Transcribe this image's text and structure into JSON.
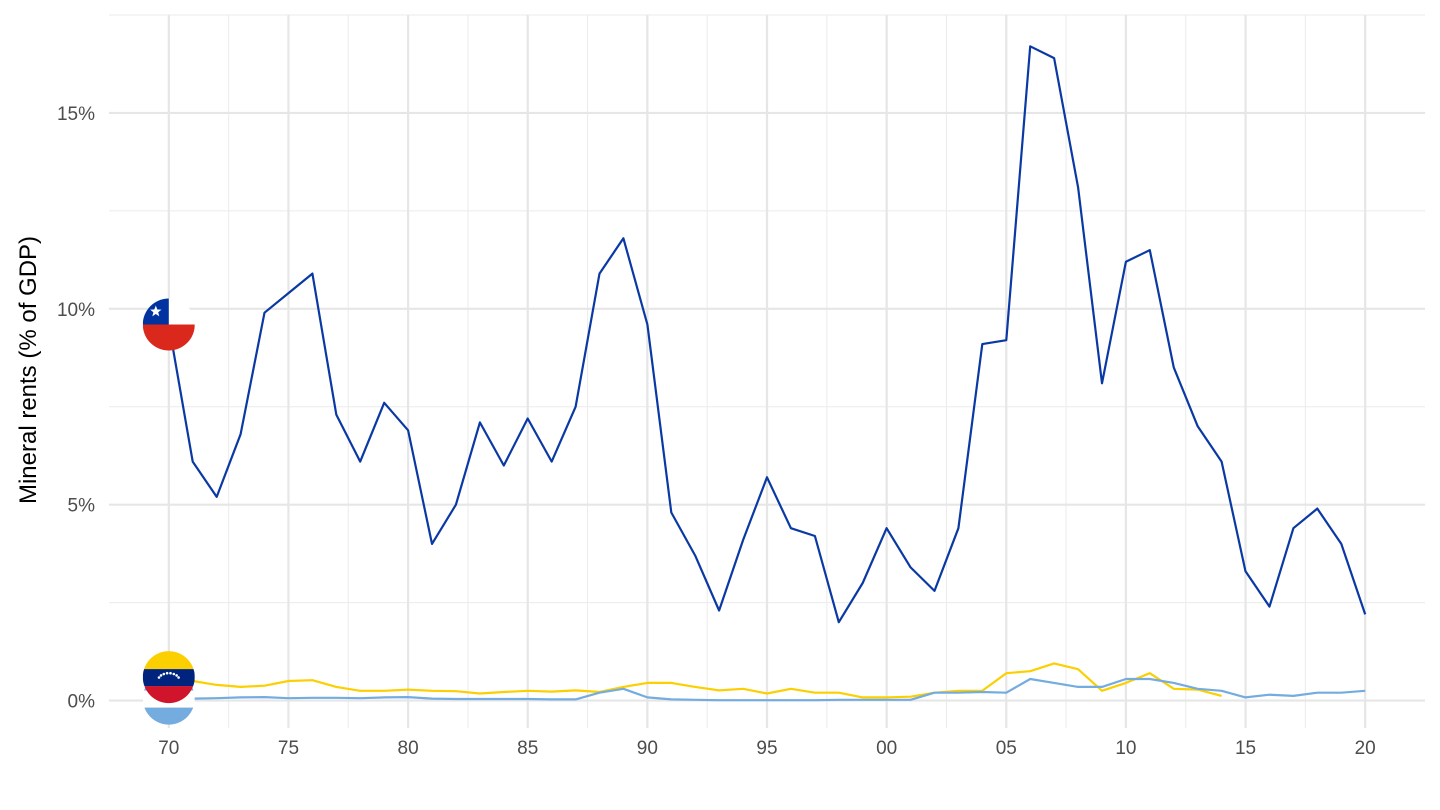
{
  "chart_data": {
    "type": "line",
    "title": "",
    "xlabel": "",
    "ylabel": "Mineral rents (% of GDP)",
    "xlim": [
      1967.5,
      2022.5
    ],
    "ylim": [
      -0.7,
      17.5
    ],
    "grid": true,
    "legend": "flag icons at series start (Chile, Venezuela, Argentina)",
    "x_ticks": [
      1970,
      1975,
      1980,
      1985,
      1990,
      1995,
      2000,
      2005,
      2010,
      2015,
      2020
    ],
    "x_tick_labels": [
      "70",
      "75",
      "80",
      "85",
      "90",
      "95",
      "00",
      "05",
      "10",
      "15",
      "20"
    ],
    "y_ticks": [
      0,
      5,
      10,
      15
    ],
    "y_tick_labels": [
      "0%",
      "5%",
      "10%",
      "15%"
    ],
    "series": [
      {
        "key": "chile",
        "color": "#0a39a4",
        "x": [
          1970,
          1971,
          1972,
          1973,
          1974,
          1975,
          1976,
          1977,
          1978,
          1979,
          1980,
          1981,
          1982,
          1983,
          1984,
          1985,
          1986,
          1987,
          1988,
          1989,
          1990,
          1991,
          1992,
          1993,
          1994,
          1995,
          1996,
          1997,
          1998,
          1999,
          2000,
          2001,
          2002,
          2003,
          2004,
          2005,
          2006,
          2007,
          2008,
          2009,
          2010,
          2011,
          2012,
          2013,
          2014,
          2015,
          2016,
          2017,
          2018,
          2019,
          2020
        ],
        "values": [
          9.6,
          6.1,
          5.2,
          6.8,
          9.9,
          10.4,
          10.9,
          7.3,
          6.1,
          7.6,
          6.9,
          4.0,
          5.0,
          7.1,
          6.0,
          7.2,
          6.1,
          7.5,
          10.9,
          11.8,
          9.6,
          4.8,
          3.7,
          2.3,
          4.1,
          5.7,
          4.4,
          4.2,
          2.0,
          3.0,
          4.4,
          3.4,
          2.8,
          4.4,
          9.1,
          9.2,
          16.7,
          16.4,
          13.1,
          8.1,
          11.2,
          11.5,
          8.5,
          7.0,
          6.1,
          3.3,
          2.4,
          4.4,
          4.9,
          4.0,
          2.2
        ]
      },
      {
        "key": "venezuela",
        "color": "#fccf00",
        "x": [
          1970,
          1971,
          1972,
          1973,
          1974,
          1975,
          1976,
          1977,
          1978,
          1979,
          1980,
          1981,
          1982,
          1983,
          1984,
          1985,
          1986,
          1987,
          1988,
          1989,
          1990,
          1991,
          1992,
          1993,
          1994,
          1995,
          1996,
          1997,
          1998,
          1999,
          2000,
          2001,
          2002,
          2003,
          2004,
          2005,
          2006,
          2007,
          2008,
          2009,
          2010,
          2011,
          2012,
          2013,
          2014
        ],
        "values": [
          0.6,
          0.5,
          0.4,
          0.35,
          0.38,
          0.5,
          0.52,
          0.35,
          0.25,
          0.25,
          0.28,
          0.25,
          0.24,
          0.18,
          0.22,
          0.25,
          0.23,
          0.26,
          0.22,
          0.35,
          0.45,
          0.45,
          0.35,
          0.26,
          0.3,
          0.18,
          0.3,
          0.2,
          0.2,
          0.08,
          0.08,
          0.1,
          0.2,
          0.25,
          0.25,
          0.7,
          0.75,
          0.95,
          0.8,
          0.25,
          0.45,
          0.7,
          0.3,
          0.28,
          0.12
        ]
      },
      {
        "key": "argentina",
        "color": "#74acdf",
        "x": [
          1970,
          1971,
          1972,
          1973,
          1974,
          1975,
          1976,
          1977,
          1978,
          1979,
          1980,
          1981,
          1982,
          1983,
          1984,
          1985,
          1986,
          1987,
          1988,
          1989,
          1990,
          1991,
          1992,
          1993,
          1994,
          1995,
          1996,
          1997,
          1998,
          1999,
          2000,
          2001,
          2002,
          2003,
          2004,
          2005,
          2006,
          2007,
          2008,
          2009,
          2010,
          2011,
          2012,
          2013,
          2014,
          2015,
          2016,
          2017,
          2018,
          2019,
          2020
        ],
        "values": [
          0.05,
          0.05,
          0.06,
          0.08,
          0.09,
          0.06,
          0.07,
          0.07,
          0.06,
          0.08,
          0.09,
          0.05,
          0.04,
          0.04,
          0.04,
          0.04,
          0.03,
          0.03,
          0.2,
          0.3,
          0.08,
          0.03,
          0.02,
          0.01,
          0.01,
          0.01,
          0.01,
          0.01,
          0.02,
          0.02,
          0.02,
          0.02,
          0.2,
          0.2,
          0.22,
          0.2,
          0.55,
          0.45,
          0.35,
          0.35,
          0.55,
          0.55,
          0.45,
          0.3,
          0.25,
          0.08,
          0.15,
          0.12,
          0.2,
          0.2,
          0.25
        ]
      }
    ],
    "flags": [
      {
        "country": "chile",
        "icon": "chile-flag-icon",
        "x": 1970,
        "y": 9.6
      },
      {
        "country": "argentina",
        "icon": "argentina-flag-icon",
        "x": 1970,
        "y": 0.05
      },
      {
        "country": "venezuela",
        "icon": "venezuela-flag-icon",
        "x": 1970,
        "y": 0.6
      }
    ]
  }
}
